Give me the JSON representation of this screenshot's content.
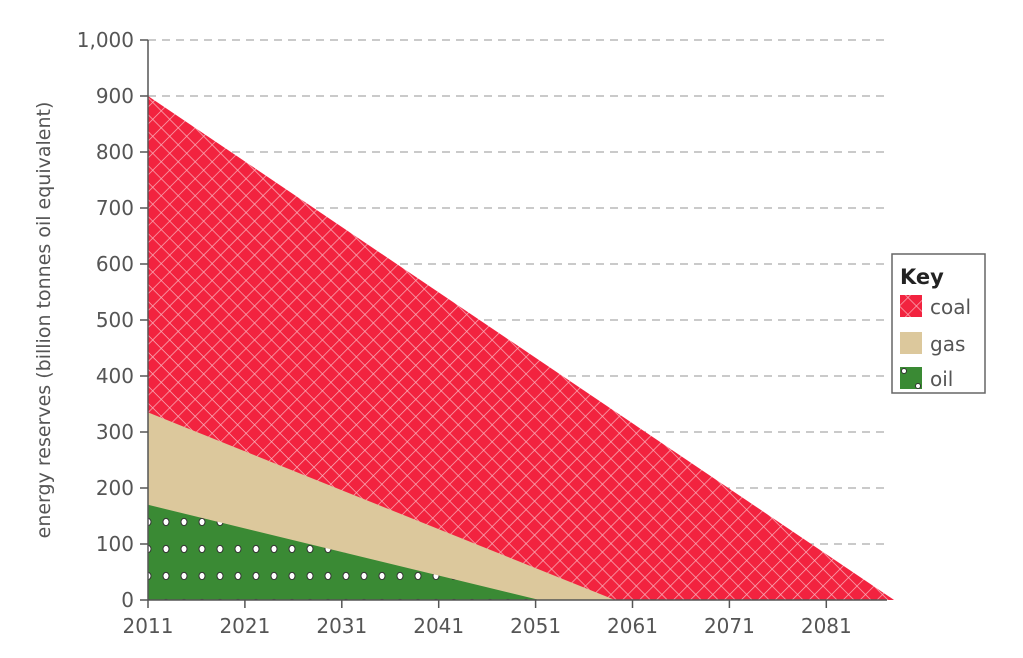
{
  "chart_data": {
    "type": "area",
    "stacked": true,
    "title": "",
    "xlabel": "",
    "ylabel": "energy reserves (billion tonnes oil equivalent)",
    "xlim": [
      2011,
      2089
    ],
    "ylim": [
      0,
      1000
    ],
    "x_ticks": [
      "2011",
      "2021",
      "2031",
      "2041",
      "2051",
      "2061",
      "2071",
      "2081"
    ],
    "y_ticks": [
      "0",
      "100",
      "200",
      "300",
      "400",
      "500",
      "600",
      "700",
      "800",
      "900",
      "1,000"
    ],
    "grid": "horizontal dashed",
    "legend": {
      "title": "Key",
      "placement": "right"
    },
    "series": [
      {
        "name": "oil",
        "color": "#3a8a34",
        "pattern": "dots",
        "points": [
          [
            2011,
            170
          ],
          [
            2051.4,
            0
          ]
        ]
      },
      {
        "name": "gas",
        "color": "#dcc89c",
        "pattern": "solid",
        "points": [
          [
            2011,
            165
          ],
          [
            2059.2,
            0
          ]
        ]
      },
      {
        "name": "coal",
        "color": "#f2233f",
        "pattern": "crosshatch",
        "points": [
          [
            2011,
            565
          ],
          [
            2088,
            0
          ]
        ]
      }
    ],
    "stack_tops": {
      "oil": [
        [
          2011,
          170
        ],
        [
          2051.4,
          0
        ]
      ],
      "gas": [
        [
          2011,
          335
        ],
        [
          2059.2,
          0
        ]
      ],
      "coal": [
        [
          2011,
          900
        ],
        [
          2088,
          0
        ]
      ]
    }
  }
}
